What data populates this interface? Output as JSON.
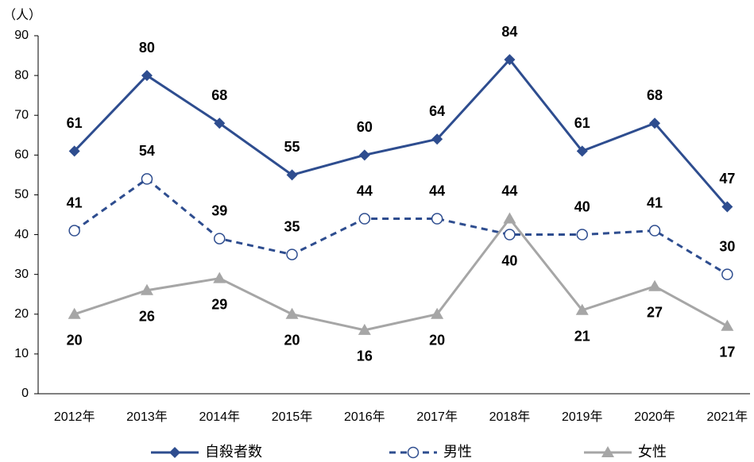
{
  "chart_data": {
    "type": "line",
    "y_label": "（人）",
    "categories": [
      "2012年",
      "2013年",
      "2014年",
      "2015年",
      "2016年",
      "2017年",
      "2018年",
      "2019年",
      "2020年",
      "2021年"
    ],
    "series": [
      {
        "name": "自殺者数",
        "color": "#2e4d8f",
        "dash": false,
        "marker": "diamond",
        "values": [
          61,
          80,
          68,
          55,
          60,
          64,
          84,
          61,
          68,
          47
        ]
      },
      {
        "name": "男性",
        "color": "#2e4d8f",
        "dash": true,
        "marker": "circle",
        "values": [
          41,
          54,
          39,
          35,
          44,
          44,
          40,
          40,
          41,
          30
        ]
      },
      {
        "name": "女性",
        "color": "#a6a6a6",
        "dash": false,
        "marker": "triangle",
        "values": [
          20,
          26,
          29,
          20,
          16,
          20,
          44,
          21,
          27,
          17
        ]
      }
    ],
    "ylim": [
      0,
      90
    ],
    "yticks": [
      0,
      10,
      20,
      30,
      40,
      50,
      60,
      70,
      80,
      90
    ],
    "grid": false,
    "legend": "bottom"
  }
}
